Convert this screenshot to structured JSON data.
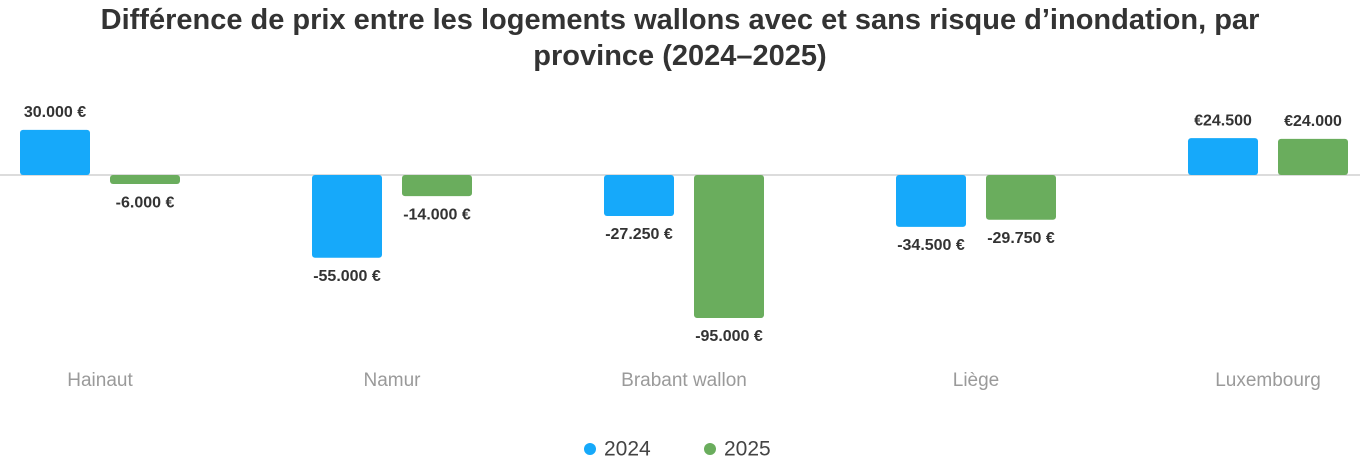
{
  "chart_data": {
    "type": "bar",
    "title": "Différence de prix entre les logements wallons avec et sans risque d’inondation, par province (2024–2025)",
    "categories": [
      "Hainaut",
      "Namur",
      "Brabant wallon",
      "Liège",
      "Luxembourg"
    ],
    "series": [
      {
        "name": "2024",
        "color": "#16a9fa",
        "values": [
          30000,
          -55000,
          -27250,
          -34500,
          24500
        ],
        "value_labels": [
          "30.000 €",
          "-55.000 €",
          "-27.250 €",
          "-34.500 €",
          "€24.500"
        ]
      },
      {
        "name": "2025",
        "color": "#6aad5d",
        "values": [
          -6000,
          -14000,
          -95000,
          -29750,
          24000
        ],
        "value_labels": [
          "-6.000 €",
          "-14.000 €",
          "-95.000 €",
          "-29.750 €",
          "€24.000"
        ]
      }
    ]
  }
}
